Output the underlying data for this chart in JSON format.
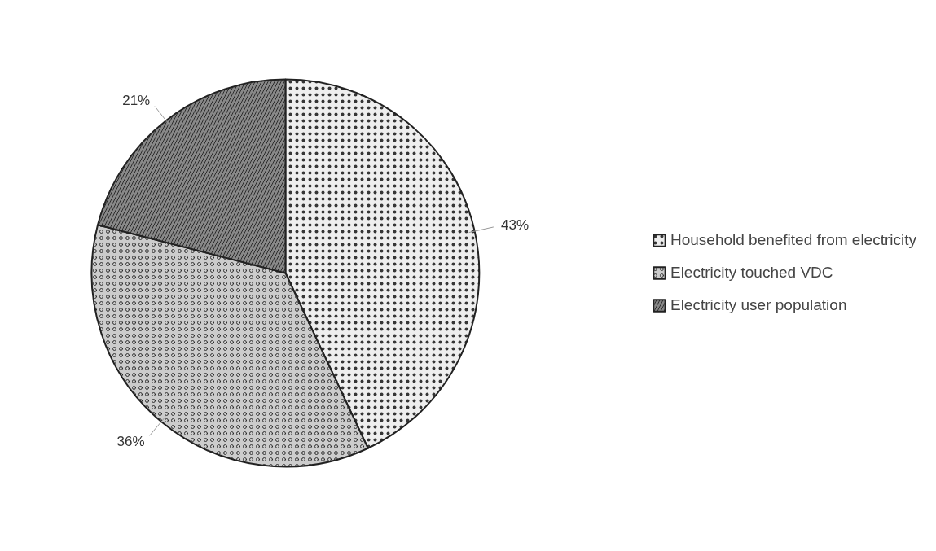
{
  "chart_data": {
    "type": "pie",
    "categories": [
      "Household benefited from electricity",
      "Electricity touched VDC",
      "Electricity user population"
    ],
    "values": [
      43,
      36,
      21
    ],
    "colors": [
      "#eeeeee",
      "#cccccc",
      "#888888"
    ],
    "value_labels": [
      "43%",
      "36%",
      "21%"
    ],
    "legend": "right"
  }
}
